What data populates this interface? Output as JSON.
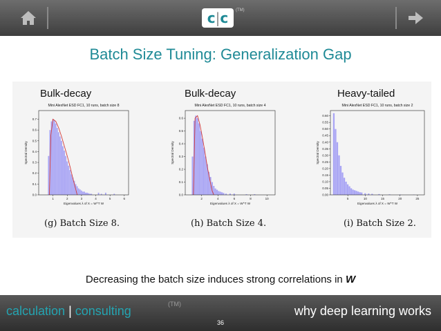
{
  "nav": {
    "logo_left": "c",
    "logo_sep": "|",
    "logo_right": "c",
    "logo_tm": "(TM)",
    "home_icon": "home-icon",
    "next_icon": "arrow-right-icon"
  },
  "slide": {
    "title": "Batch Size Tuning:  Generalization Gap",
    "statement_text": "Decreasing the batch size induces strong correlations in ",
    "statement_symbol": "W"
  },
  "panels": [
    {
      "label": "Bulk-decay",
      "plot_title": "Mini AlexNet ESD FC1, 10 runs, batch size 8",
      "caption": "(g) Batch Size 8."
    },
    {
      "label": "Bulk-decay",
      "plot_title": "Mini AlexNet ESD FC1, 10 runs, batch size 4",
      "caption": "(h) Batch Size 4."
    },
    {
      "label": "Heavy-tailed",
      "plot_title": "Mini AlexNet ESD FC1, 10 runs, batch size 2",
      "caption": "(i) Batch Size 2."
    }
  ],
  "chart_data": [
    {
      "type": "bar",
      "title": "Mini AlexNet ESD FC1, 10 runs, batch size 8",
      "xlabel": "Eigenvalues λ of X = W^T W",
      "ylabel": "Spectral Density",
      "xlim": [
        0,
        6.3
      ],
      "ylim": [
        0,
        0.78
      ],
      "xticks": [
        "1",
        "2",
        "3",
        "4",
        "5",
        "6"
      ],
      "yticks": [
        "0.0",
        "0.1",
        "0.2",
        "0.3",
        "0.4",
        "0.5",
        "0.6",
        "0.7"
      ],
      "fit_curve": "Marchenko-Pastur fit (red)",
      "histogram": {
        "x": [
          0.7,
          0.8,
          0.9,
          1.0,
          1.1,
          1.2,
          1.3,
          1.4,
          1.5,
          1.6,
          1.7,
          1.8,
          1.9,
          2.0,
          2.1,
          2.2,
          2.3,
          2.4,
          2.5,
          2.6,
          2.7,
          2.8,
          2.9,
          3.0,
          3.1,
          3.2,
          3.3,
          3.4,
          3.5,
          3.6,
          3.7,
          4.2,
          4.4,
          4.7,
          5.3
        ],
        "y": [
          0.36,
          0.6,
          0.68,
          0.7,
          0.69,
          0.66,
          0.62,
          0.58,
          0.54,
          0.5,
          0.45,
          0.41,
          0.36,
          0.31,
          0.27,
          0.23,
          0.19,
          0.16,
          0.13,
          0.1,
          0.08,
          0.06,
          0.05,
          0.04,
          0.03,
          0.03,
          0.02,
          0.02,
          0.015,
          0.01,
          0.01,
          0.02,
          0.01,
          0.02,
          0.01
        ]
      },
      "fit": {
        "x": [
          0.75,
          0.85,
          1.0,
          1.2,
          1.4,
          1.6,
          1.8,
          2.0,
          2.2,
          2.4,
          2.6,
          2.7
        ],
        "y": [
          0.0,
          0.55,
          0.7,
          0.68,
          0.62,
          0.54,
          0.45,
          0.36,
          0.26,
          0.15,
          0.05,
          0.0
        ]
      }
    },
    {
      "type": "bar",
      "title": "Mini AlexNet ESD FC1, 10 runs, batch size 4",
      "xlabel": "Eigenvalues λ of X = W^T W",
      "ylabel": "Spectral Density",
      "xlim": [
        0,
        11
      ],
      "ylim": [
        0,
        0.66
      ],
      "xticks": [
        "2",
        "4",
        "6",
        "8",
        "10"
      ],
      "yticks": [
        "0.0",
        "0.1",
        "0.2",
        "0.3",
        "0.4",
        "0.5",
        "0.6"
      ],
      "fit_curve": "Marchenko-Pastur fit (red)",
      "histogram": {
        "x": [
          0.9,
          1.1,
          1.3,
          1.5,
          1.7,
          1.9,
          2.1,
          2.3,
          2.5,
          2.7,
          2.9,
          3.1,
          3.3,
          3.5,
          3.7,
          3.9,
          4.1,
          4.3,
          4.5,
          4.7,
          5.0,
          5.5,
          6.0,
          7.5,
          8.5
        ],
        "y": [
          0.3,
          0.58,
          0.62,
          0.6,
          0.56,
          0.5,
          0.44,
          0.37,
          0.3,
          0.24,
          0.18,
          0.14,
          0.1,
          0.07,
          0.05,
          0.04,
          0.03,
          0.025,
          0.02,
          0.015,
          0.01,
          0.01,
          0.01,
          0.005,
          0.005
        ]
      },
      "fit": {
        "x": [
          1.0,
          1.2,
          1.5,
          1.8,
          2.1,
          2.4,
          2.7,
          3.0,
          3.3,
          3.5
        ],
        "y": [
          0.0,
          0.6,
          0.62,
          0.55,
          0.45,
          0.34,
          0.22,
          0.12,
          0.03,
          0.0
        ]
      }
    },
    {
      "type": "bar",
      "title": "Mini AlexNet ESD FC1, 10 runs, batch size 2",
      "xlabel": "Eigenvalues λ of X = W^T W",
      "ylabel": "Spectral Density",
      "xlim": [
        0,
        27
      ],
      "ylim": [
        0,
        0.64
      ],
      "xticks": [
        "5",
        "10",
        "15",
        "20",
        "25"
      ],
      "yticks": [
        "0.00",
        "0.05",
        "0.10",
        "0.15",
        "0.20",
        "0.25",
        "0.30",
        "0.35",
        "0.40",
        "0.45",
        "0.50",
        "0.55",
        "0.60"
      ],
      "histogram": {
        "x": [
          1.0,
          1.5,
          2.0,
          2.5,
          3.0,
          3.5,
          4.0,
          4.5,
          5.0,
          5.5,
          6.0,
          6.5,
          7.0,
          7.5,
          8.0,
          8.5,
          9.0,
          10.0,
          11.0,
          12.0,
          14.0,
          17.0,
          20.0,
          24.0
        ],
        "y": [
          0.62,
          0.5,
          0.4,
          0.3,
          0.22,
          0.17,
          0.13,
          0.1,
          0.08,
          0.065,
          0.05,
          0.04,
          0.035,
          0.03,
          0.025,
          0.02,
          0.018,
          0.012,
          0.01,
          0.008,
          0.006,
          0.004,
          0.003,
          0.002
        ]
      }
    }
  ],
  "footer": {
    "left_calc": "calculation",
    "left_sep": " | ",
    "left_consult": "consulting",
    "tm": "(TM)",
    "right": "why deep learning works",
    "page": "36"
  }
}
